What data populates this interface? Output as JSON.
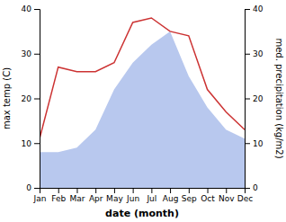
{
  "chart_data": {
    "type": "line",
    "categories": [
      "Jan",
      "Feb",
      "Mar",
      "Apr",
      "May",
      "Jun",
      "Jul",
      "Aug",
      "Sep",
      "Oct",
      "Nov",
      "Dec"
    ],
    "series": [
      {
        "type": "area",
        "axis": "y2",
        "color": "#b8c8ee",
        "values": [
          8,
          8,
          9,
          13,
          22,
          28,
          32,
          35,
          25,
          18,
          13,
          11
        ]
      },
      {
        "type": "line",
        "color": "#cc3333",
        "values": [
          11,
          27,
          26,
          26,
          28,
          37,
          38,
          35,
          34,
          22,
          17,
          13
        ]
      }
    ],
    "xlabel": "date (month)",
    "ylabel": "max temp (C)",
    "y2label": "med. precipitation (kg/m2)",
    "ylim": [
      0,
      40
    ],
    "yticks": [
      0,
      10,
      20,
      30,
      40
    ],
    "y2lim": [
      0,
      40
    ],
    "y2ticks": [
      0,
      10,
      20,
      30,
      40
    ],
    "grid": false
  }
}
